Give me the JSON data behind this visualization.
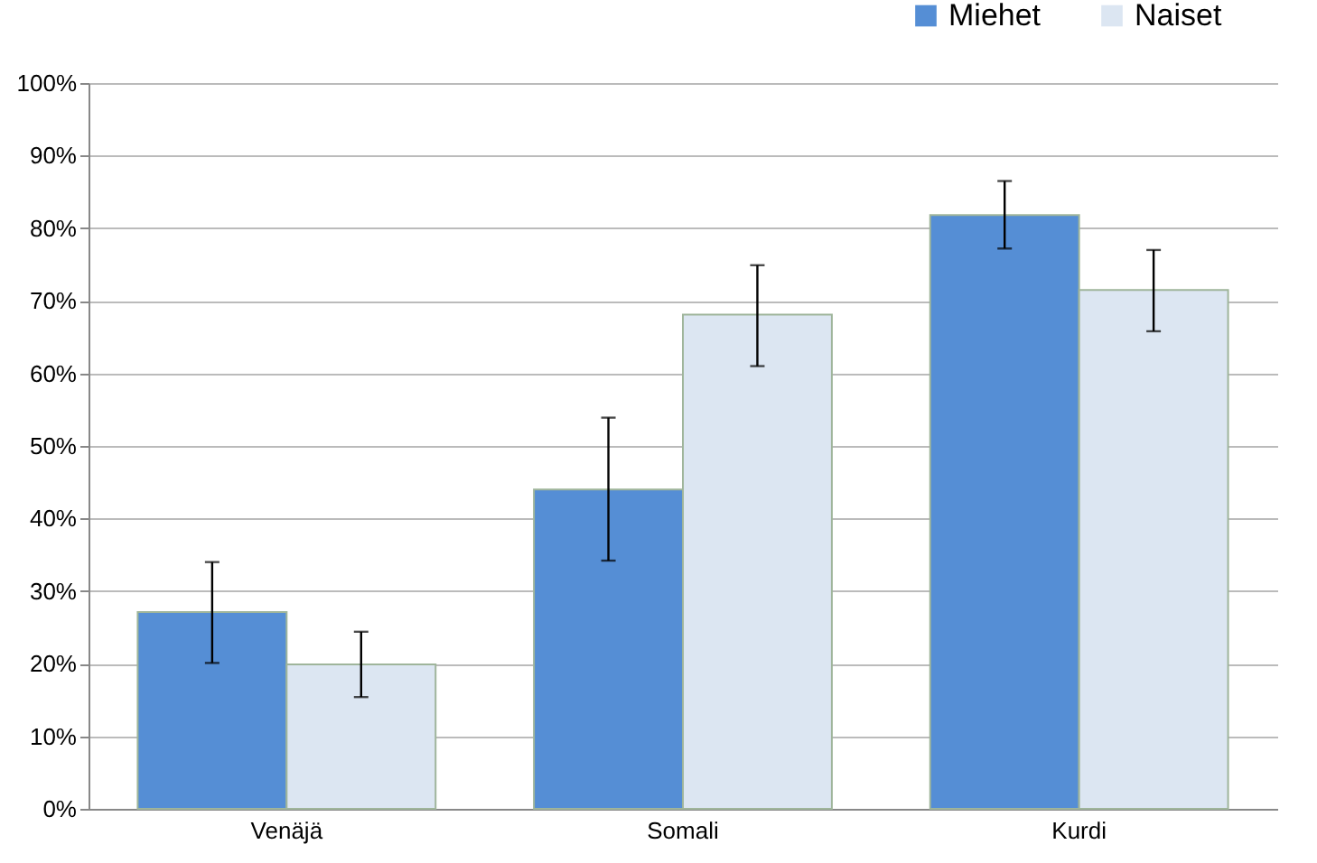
{
  "chart_data": {
    "type": "bar",
    "categories": [
      "Venäjä",
      "Somali",
      "Kurdi"
    ],
    "series": [
      {
        "name": "Miehet",
        "color": "#558ed5",
        "values": [
          27.1,
          44.0,
          81.8
        ],
        "errors": [
          [
            20.1,
            34.0
          ],
          [
            34.2,
            53.9
          ],
          [
            77.2,
            86.5
          ]
        ]
      },
      {
        "name": "Naiset",
        "color": "#dce6f2",
        "values": [
          19.9,
          68.1,
          71.5
        ],
        "errors": [
          [
            15.4,
            24.4
          ],
          [
            61.0,
            74.9
          ],
          [
            65.8,
            77.0
          ]
        ]
      }
    ],
    "ylim": [
      0,
      100
    ],
    "yticks": [
      {
        "value": 0,
        "label": "0%"
      },
      {
        "value": 10,
        "label": "10%"
      },
      {
        "value": 20,
        "label": "20%"
      },
      {
        "value": 30,
        "label": "30%"
      },
      {
        "value": 40,
        "label": "40%"
      },
      {
        "value": 50,
        "label": "50%"
      },
      {
        "value": 60,
        "label": "60%"
      },
      {
        "value": 70,
        "label": "70%"
      },
      {
        "value": 80,
        "label": "80%"
      },
      {
        "value": 90,
        "label": "90%"
      },
      {
        "value": 100,
        "label": "100%"
      }
    ],
    "grid": "y",
    "legend": "top right"
  }
}
